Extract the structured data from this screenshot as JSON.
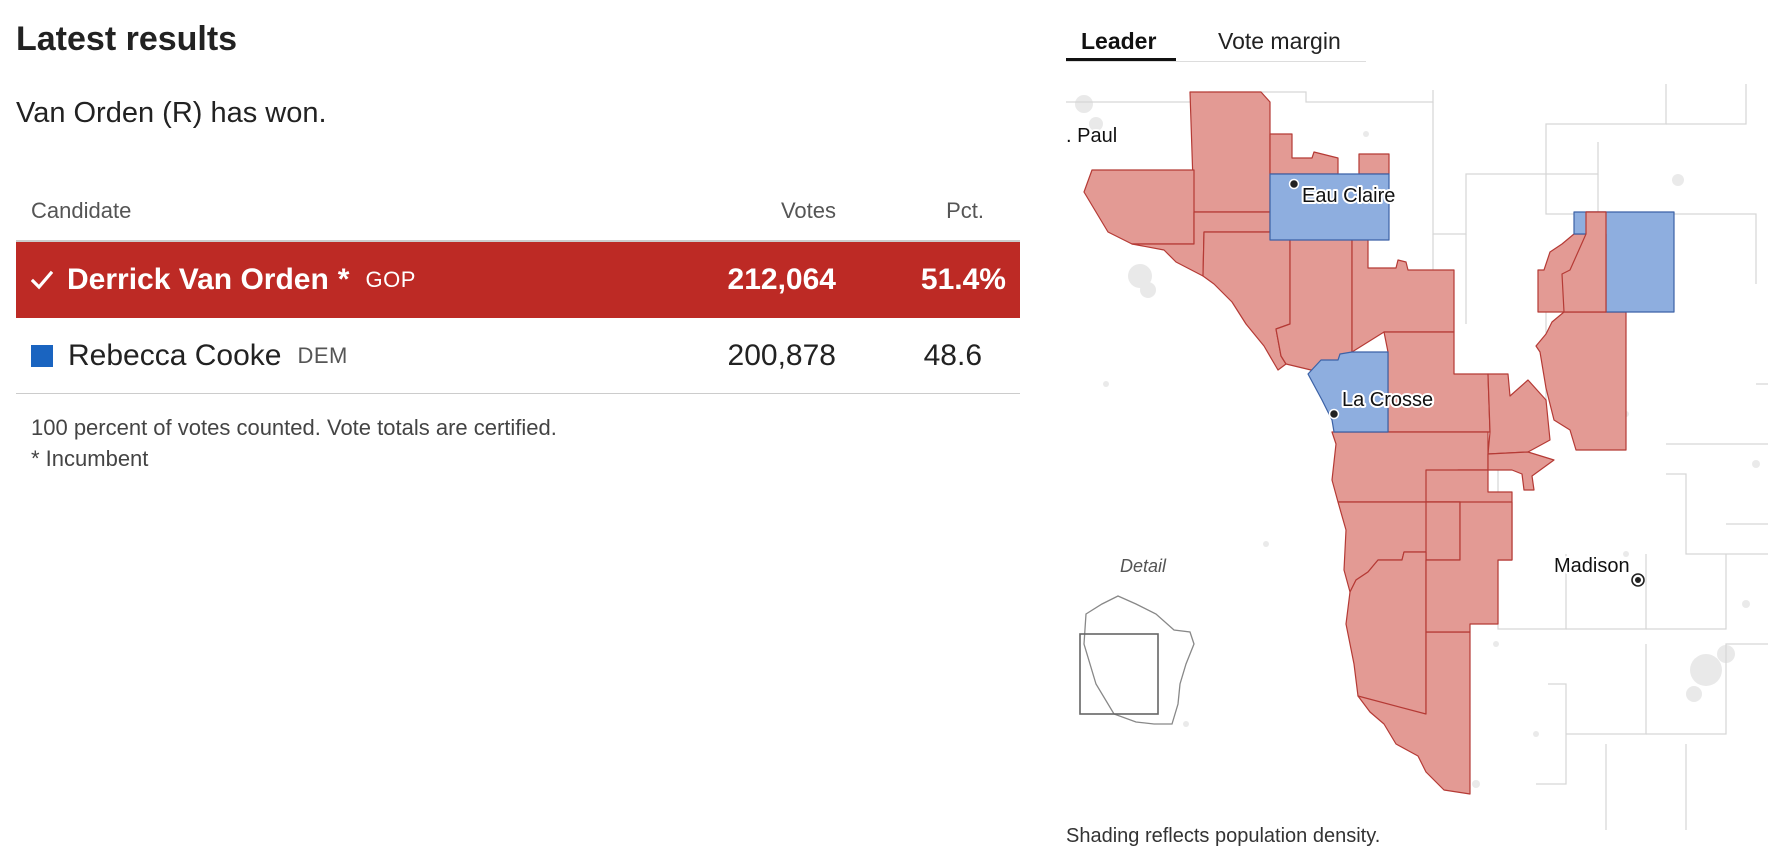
{
  "results": {
    "title": "Latest results",
    "status": "Van Orden (R) has won.",
    "columns": {
      "candidate": "Candidate",
      "votes": "Votes",
      "pct": "Pct."
    },
    "candidates": [
      {
        "name": "Derrick Van Orden",
        "incumbent_mark": "*",
        "party": "GOP",
        "votes": "212,064",
        "pct": "51.4%",
        "winner": true
      },
      {
        "name": "Rebecca Cooke",
        "incumbent_mark": "",
        "party": "DEM",
        "votes": "200,878",
        "pct": "48.6",
        "winner": false
      }
    ],
    "notes": {
      "counted": "100 percent of votes counted. Vote totals are certified.",
      "incumbent": "* Incumbent"
    }
  },
  "map": {
    "tabs": {
      "leader": "Leader",
      "margin": "Vote margin",
      "active": "leader"
    },
    "labels": {
      "st_paul": ". Paul",
      "eau_claire": "Eau Claire",
      "la_crosse": "La Crosse",
      "madison": "Madison",
      "detail": "Detail"
    },
    "caption": "Shading reflects population density.",
    "colors": {
      "gop_fill": "#e39a94",
      "gop_stroke": "#b53a35",
      "dem_fill": "#8eaedf",
      "dem_stroke": "#3c62a6",
      "winner_row": "#bd2a25",
      "dem_swatch": "#1a64c0"
    }
  }
}
